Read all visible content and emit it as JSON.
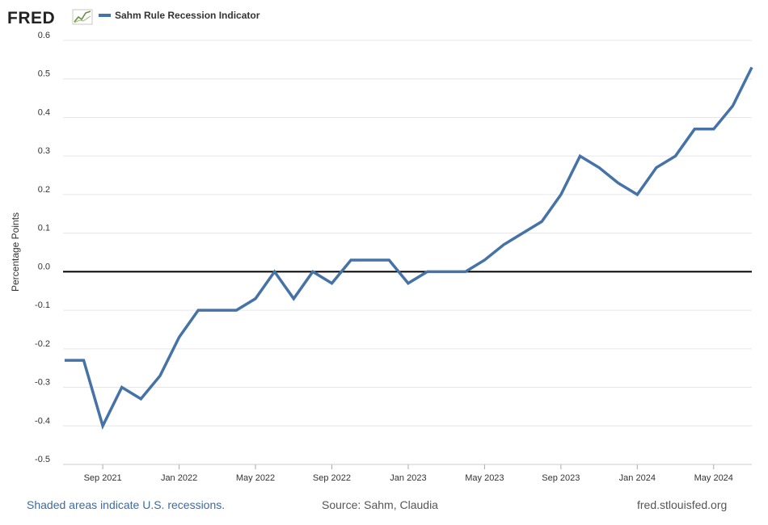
{
  "brand": {
    "logo_text": "FRED",
    "logo_icon": "chart-trend-icon"
  },
  "legend": {
    "label": "Sahm Rule Recession Indicator",
    "color": "#4572a7"
  },
  "chart_data": {
    "type": "line",
    "title": "",
    "xlabel": "",
    "ylabel": "Percentage Points",
    "ylim": [
      -0.5,
      0.6
    ],
    "yticks": [
      -0.5,
      -0.4,
      -0.3,
      -0.2,
      -0.1,
      0.0,
      0.1,
      0.2,
      0.3,
      0.4,
      0.5,
      0.6
    ],
    "ytick_labels": [
      "-0.5",
      "-0.4",
      "-0.3",
      "-0.2",
      "-0.1",
      "0.0",
      "0.1",
      "0.2",
      "0.3",
      "0.4",
      "0.5",
      "0.6"
    ],
    "xticks": [
      "2021-09",
      "2022-01",
      "2022-05",
      "2022-09",
      "2023-01",
      "2023-05",
      "2023-09",
      "2024-01",
      "2024-05"
    ],
    "xtick_labels": [
      "Sep 2021",
      "Jan 2022",
      "May 2022",
      "Sep 2022",
      "Jan 2023",
      "May 2023",
      "Sep 2023",
      "Jan 2024",
      "May 2024"
    ],
    "zero_line": true,
    "grid": true,
    "series": [
      {
        "name": "Sahm Rule Recession Indicator",
        "color": "#4572a7",
        "x": [
          "2021-07",
          "2021-08",
          "2021-09",
          "2021-10",
          "2021-11",
          "2021-12",
          "2022-01",
          "2022-02",
          "2022-03",
          "2022-04",
          "2022-05",
          "2022-06",
          "2022-07",
          "2022-08",
          "2022-09",
          "2022-10",
          "2022-11",
          "2022-12",
          "2023-01",
          "2023-02",
          "2023-03",
          "2023-04",
          "2023-05",
          "2023-06",
          "2023-07",
          "2023-08",
          "2023-09",
          "2023-10",
          "2023-11",
          "2023-12",
          "2024-01",
          "2024-02",
          "2024-03",
          "2024-04",
          "2024-05",
          "2024-06",
          "2024-07"
        ],
        "values": [
          -0.23,
          -0.23,
          -0.4,
          -0.3,
          -0.33,
          -0.27,
          -0.17,
          -0.1,
          -0.1,
          -0.1,
          -0.07,
          0.0,
          -0.07,
          0.0,
          -0.03,
          0.03,
          0.03,
          0.03,
          -0.03,
          0.0,
          0.0,
          0.0,
          0.03,
          0.07,
          0.1,
          0.13,
          0.2,
          0.3,
          0.27,
          0.23,
          0.2,
          0.27,
          0.3,
          0.37,
          0.37,
          0.43,
          0.53
        ]
      }
    ]
  },
  "footer": {
    "left": "Shaded areas indicate U.S. recessions.",
    "center": "Source: Sahm, Claudia",
    "right": "fred.stlouisfed.org"
  }
}
